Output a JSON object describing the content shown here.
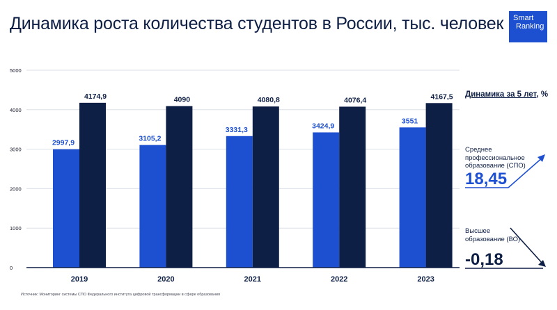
{
  "header": {
    "title": "Динамика роста количества студентов в России, тыс. человек",
    "logo_line1": "Smart",
    "logo_line2": "Ranking"
  },
  "chart_data": {
    "type": "bar",
    "categories": [
      "2019",
      "2020",
      "2021",
      "2022",
      "2023"
    ],
    "series": [
      {
        "values": [
          2997.9,
          3105.2,
          3331.3,
          3424.9,
          3551
        ],
        "color": "#1d4fd1"
      },
      {
        "values": [
          4174.9,
          4090,
          4080.8,
          4076.4,
          4167.5
        ],
        "color": "#0e1f45"
      }
    ],
    "value_labels": [
      [
        "2997,9",
        "3105,2",
        "3331,3",
        "3424,9",
        "3551"
      ],
      [
        "4174,9",
        "4090",
        "4080,8",
        "4076,4",
        "4167,5"
      ]
    ],
    "yticks": [
      "0",
      "1000",
      "2000",
      "3000",
      "4000",
      "5000"
    ],
    "ylim": [
      0,
      5000
    ],
    "grid": true,
    "title": "",
    "xlabel": "",
    "ylabel": ""
  },
  "dynamics": {
    "title_prefix": "Динамика за 5 лет",
    "title_suffix": ", %",
    "spo_label": "Среднее профессиональное образование (СПО)",
    "spo_value": "18,45",
    "vo_label": "Высшее образование (ВО)",
    "vo_value": "-0,18"
  },
  "footer": {
    "source": "Источник: Мониторинг системы СПО Федерального института цифровой трансформации в сфере образования"
  }
}
